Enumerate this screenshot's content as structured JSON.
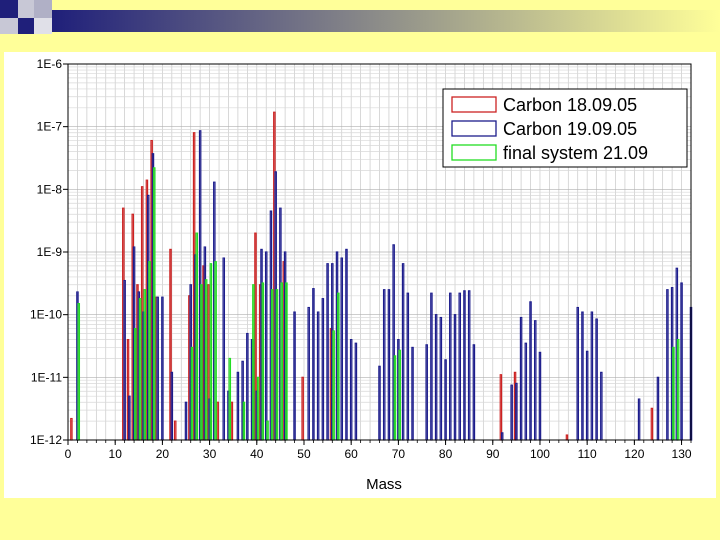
{
  "header": {
    "colors": [
      "#1f1f7a",
      "#ffff99"
    ]
  },
  "chart_data": {
    "type": "bar",
    "title": "",
    "xlabel": "Mass",
    "ylabel": "",
    "x_range": [
      0,
      132
    ],
    "y_log": true,
    "ylim": [
      1e-12,
      1e-06
    ],
    "x_ticks": [
      0,
      10,
      20,
      30,
      40,
      50,
      60,
      70,
      80,
      90,
      100,
      110,
      120,
      130
    ],
    "y_ticks": [
      {
        "value": 1e-12,
        "label": "1E-12"
      },
      {
        "value": 1e-11,
        "label": "1E-11"
      },
      {
        "value": 1e-10,
        "label": "1E-10"
      },
      {
        "value": 1e-09,
        "label": "1E-9"
      },
      {
        "value": 1e-08,
        "label": "1E-8"
      },
      {
        "value": 1e-07,
        "label": "1E-7"
      },
      {
        "value": 1e-06,
        "label": "1E-6"
      }
    ],
    "grid": true,
    "legend_position": "top-right",
    "series": [
      {
        "name": "Carbon 18.09.05",
        "color": "#cc2222",
        "points": [
          [
            1,
            2.2e-12
          ],
          [
            12,
            5e-09
          ],
          [
            13,
            4e-11
          ],
          [
            14,
            4e-09
          ],
          [
            15,
            3e-10
          ],
          [
            16,
            1.1e-08
          ],
          [
            17,
            1.4e-08
          ],
          [
            18,
            6e-08
          ],
          [
            19,
            1.9e-10
          ],
          [
            22,
            1.1e-09
          ],
          [
            23,
            2e-12
          ],
          [
            26,
            2e-10
          ],
          [
            27,
            8e-08
          ],
          [
            29,
            6e-10
          ],
          [
            30,
            3e-10
          ],
          [
            32,
            4e-12
          ],
          [
            35,
            4e-12
          ],
          [
            40,
            2e-09
          ],
          [
            41,
            3e-10
          ],
          [
            44,
            1.7e-07
          ],
          [
            46,
            7e-10
          ],
          [
            50,
            1e-11
          ],
          [
            56,
            6e-11
          ],
          [
            92,
            1.1e-11
          ],
          [
            95,
            1.2e-11
          ],
          [
            106,
            1.2e-12
          ],
          [
            124,
            3.2e-12
          ]
        ]
      },
      {
        "name": "Carbon 19.09.05",
        "color": "#1c1c8c",
        "points": [
          [
            2,
            2.3e-10
          ],
          [
            12,
            3.5e-10
          ],
          [
            13,
            5e-12
          ],
          [
            14,
            1.2e-09
          ],
          [
            15,
            2.3e-10
          ],
          [
            16,
            1.1e-10
          ],
          [
            17,
            8e-09
          ],
          [
            18,
            3.7e-08
          ],
          [
            19,
            1.9e-10
          ],
          [
            20,
            1.9e-10
          ],
          [
            22,
            1.2e-11
          ],
          [
            25,
            4e-12
          ],
          [
            26,
            3e-10
          ],
          [
            27,
            9e-10
          ],
          [
            28,
            8.6e-08
          ],
          [
            29,
            1.2e-09
          ],
          [
            30,
            4.5e-12
          ],
          [
            31,
            1.3e-08
          ],
          [
            33,
            8e-10
          ],
          [
            34,
            6e-12
          ],
          [
            36,
            1.2e-11
          ],
          [
            37,
            1.8e-11
          ],
          [
            38,
            5e-11
          ],
          [
            39,
            4e-11
          ],
          [
            40,
            6e-12
          ],
          [
            41,
            1.1e-09
          ],
          [
            42,
            1e-09
          ],
          [
            43,
            4.5e-09
          ],
          [
            44,
            1.9e-08
          ],
          [
            45,
            5e-09
          ],
          [
            46,
            1e-09
          ],
          [
            48,
            1.1e-10
          ],
          [
            51,
            1.3e-10
          ],
          [
            52,
            2.6e-10
          ],
          [
            53,
            1.1e-10
          ],
          [
            54,
            1.8e-10
          ],
          [
            55,
            6.5e-10
          ],
          [
            56,
            6.5e-10
          ],
          [
            57,
            1e-09
          ],
          [
            58,
            8e-10
          ],
          [
            59,
            1.1e-09
          ],
          [
            60,
            4e-11
          ],
          [
            61,
            3.5e-11
          ],
          [
            66,
            1.5e-11
          ],
          [
            67,
            2.5e-10
          ],
          [
            68,
            2.5e-10
          ],
          [
            69,
            1.3e-09
          ],
          [
            70,
            4e-11
          ],
          [
            71,
            6.5e-10
          ],
          [
            72,
            2.2e-10
          ],
          [
            73,
            3e-11
          ],
          [
            76,
            3.3e-11
          ],
          [
            77,
            2.2e-10
          ],
          [
            78,
            1e-10
          ],
          [
            79,
            9e-11
          ],
          [
            80,
            1.9e-11
          ],
          [
            81,
            2.2e-10
          ],
          [
            82,
            1e-10
          ],
          [
            83,
            2.2e-10
          ],
          [
            84,
            2.4e-10
          ],
          [
            85,
            2.4e-10
          ],
          [
            86,
            3.3e-11
          ],
          [
            92,
            1.3e-12
          ],
          [
            94,
            7.5e-12
          ],
          [
            95,
            8e-12
          ],
          [
            96,
            9e-11
          ],
          [
            97,
            3.5e-11
          ],
          [
            98,
            1.6e-10
          ],
          [
            99,
            8e-11
          ],
          [
            100,
            2.5e-11
          ],
          [
            108,
            1.3e-10
          ],
          [
            109,
            1.1e-10
          ],
          [
            110,
            2.6e-11
          ],
          [
            111,
            1.1e-10
          ],
          [
            112,
            8.5e-11
          ],
          [
            113,
            1.2e-11
          ],
          [
            121,
            4.5e-12
          ],
          [
            125,
            1e-11
          ],
          [
            127,
            2.5e-10
          ],
          [
            128,
            2.7e-10
          ],
          [
            129,
            5.5e-10
          ],
          [
            130,
            3.2e-10
          ],
          [
            132,
            1.3e-10
          ]
        ]
      },
      {
        "name": "final system 21.09",
        "color": "#22dd22",
        "points": [
          [
            2,
            1.5e-10
          ],
          [
            14,
            6e-11
          ],
          [
            15,
            1.8e-10
          ],
          [
            16,
            2.5e-10
          ],
          [
            17,
            7e-10
          ],
          [
            18,
            2.2e-08
          ],
          [
            26,
            3e-11
          ],
          [
            27,
            2e-09
          ],
          [
            28,
            3e-10
          ],
          [
            29,
            3.6e-10
          ],
          [
            30,
            6.5e-10
          ],
          [
            31,
            7e-10
          ],
          [
            34,
            2e-11
          ],
          [
            37,
            4e-12
          ],
          [
            39,
            3e-10
          ],
          [
            40,
            1e-11
          ],
          [
            41,
            3.2e-10
          ],
          [
            42,
            2e-12
          ],
          [
            43,
            2.5e-10
          ],
          [
            44,
            2.5e-10
          ],
          [
            45,
            3.2e-10
          ],
          [
            46,
            3.2e-10
          ],
          [
            56,
            5.5e-11
          ],
          [
            57,
            2.2e-10
          ],
          [
            69,
            2.2e-11
          ],
          [
            70,
            2.7e-11
          ],
          [
            128,
            3e-11
          ],
          [
            129,
            4e-11
          ]
        ]
      }
    ]
  }
}
